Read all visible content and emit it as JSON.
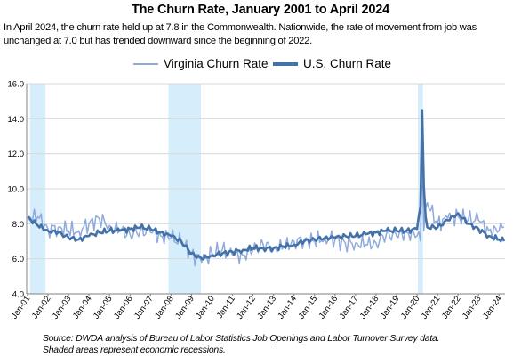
{
  "header": {
    "title": "The Churn Rate, January 2001 to April 2024",
    "subtitle": "In April 2024, the churn rate held up at 7.8  in the Commonwealth. Nationwide, the rate of movement from job was unchanged at 7.0 but has trended downward since the beginning of 2022."
  },
  "legend": {
    "items": [
      {
        "label": "Virginia Churn Rate",
        "color": "#8FAADC"
      },
      {
        "label": "U.S. Churn Rate",
        "color": "#4472A8"
      }
    ]
  },
  "footer": {
    "source_line1": "Source: DWDA analysis of Bureau of Labor Statistics Job Openings and Labor Turnover Survey data.",
    "source_line2": "Shaded areas represent economic recessions."
  },
  "chart_data": {
    "type": "line",
    "title": "The Churn Rate, January 2001 to April 2024",
    "ylim": [
      4.0,
      16.0
    ],
    "yticks": [
      "4.0",
      "6.0",
      "8.0",
      "10.0",
      "12.0",
      "14.0",
      "16.0"
    ],
    "xticks": [
      "Jan-01",
      "Jan-02",
      "Jan-03",
      "Jan-04",
      "Jan-05",
      "Jan-06",
      "Jan-07",
      "Jan-08",
      "Jan-09",
      "Jan-10",
      "Jan-11",
      "Jan-12",
      "Jan-13",
      "Jan-14",
      "Jan-15",
      "Jan-16",
      "Jan-17",
      "Jan-18",
      "Jan-19",
      "Jan-20",
      "Jan-21",
      "Jan-22",
      "Jan-23",
      "Jan-24"
    ],
    "x_start": "Jan-01",
    "x_end": "Apr-24",
    "grid": "horizontal",
    "legend_position": "top",
    "recessions": [
      {
        "start": "Mar-01",
        "end": "Nov-01"
      },
      {
        "start": "Dec-07",
        "end": "Jun-09"
      },
      {
        "start": "Feb-20",
        "end": "Apr-20"
      }
    ],
    "recession_color": "#D6EEFB",
    "series": [
      {
        "name": "Virginia Churn Rate",
        "color": "#8FAADC",
        "anchors": [
          [
            "Jan-01",
            8.3
          ],
          [
            "Jul-01",
            8.4
          ],
          [
            "Jan-02",
            7.7
          ],
          [
            "Jul-02",
            7.8
          ],
          [
            "Jan-03",
            7.6
          ],
          [
            "Jul-03",
            7.6
          ],
          [
            "Jan-04",
            8.0
          ],
          [
            "Jul-04",
            8.3
          ],
          [
            "Jan-05",
            7.9
          ],
          [
            "Jul-05",
            7.6
          ],
          [
            "Jan-06",
            7.4
          ],
          [
            "Jul-06",
            7.6
          ],
          [
            "Jan-07",
            7.5
          ],
          [
            "Jul-07",
            7.3
          ],
          [
            "Jan-08",
            7.2
          ],
          [
            "Jul-08",
            6.9
          ],
          [
            "Jan-09",
            6.3
          ],
          [
            "Jul-09",
            5.8
          ],
          [
            "Jan-10",
            6.3
          ],
          [
            "Jul-10",
            6.5
          ],
          [
            "Jan-11",
            6.2
          ],
          [
            "Jul-11",
            6.2
          ],
          [
            "Jan-12",
            6.5
          ],
          [
            "Jul-12",
            6.8
          ],
          [
            "Jan-13",
            6.6
          ],
          [
            "Jul-13",
            6.7
          ],
          [
            "Jan-14",
            7.0
          ],
          [
            "Jul-14",
            7.1
          ],
          [
            "Jan-15",
            7.0
          ],
          [
            "Jul-15",
            7.2
          ],
          [
            "Jan-16",
            7.1
          ],
          [
            "Jul-16",
            6.9
          ],
          [
            "Jan-17",
            6.9
          ],
          [
            "Jul-17",
            6.8
          ],
          [
            "Jan-18",
            6.9
          ],
          [
            "Jul-18",
            7.4
          ],
          [
            "Jan-19",
            7.3
          ],
          [
            "Jul-19",
            7.5
          ],
          [
            "Jan-20",
            7.3
          ],
          [
            "Mar-20",
            7.0
          ],
          [
            "Apr-20",
            11.6
          ],
          [
            "May-20",
            7.6
          ],
          [
            "Jul-20",
            9.2
          ],
          [
            "Jan-21",
            8.0
          ],
          [
            "Jul-21",
            8.3
          ],
          [
            "Jan-22",
            8.4
          ],
          [
            "Jul-22",
            8.2
          ],
          [
            "Jan-23",
            8.2
          ],
          [
            "Jul-23",
            7.6
          ],
          [
            "Jan-24",
            7.6
          ],
          [
            "Apr-24",
            7.8
          ]
        ]
      },
      {
        "name": "U.S. Churn Rate",
        "color": "#4472A8",
        "anchors": [
          [
            "Jan-01",
            8.4
          ],
          [
            "Jul-01",
            7.9
          ],
          [
            "Jan-02",
            7.6
          ],
          [
            "Jul-02",
            7.5
          ],
          [
            "Jan-03",
            7.2
          ],
          [
            "Jul-03",
            7.1
          ],
          [
            "Jan-04",
            7.3
          ],
          [
            "Jul-04",
            7.5
          ],
          [
            "Jan-05",
            7.6
          ],
          [
            "Jul-05",
            7.6
          ],
          [
            "Jan-06",
            7.7
          ],
          [
            "Jul-06",
            7.8
          ],
          [
            "Jan-07",
            7.7
          ],
          [
            "Jul-07",
            7.5
          ],
          [
            "Jan-08",
            7.3
          ],
          [
            "Jul-08",
            7.0
          ],
          [
            "Jan-09",
            6.3
          ],
          [
            "Jul-09",
            6.0
          ],
          [
            "Jan-10",
            6.2
          ],
          [
            "Jul-10",
            6.3
          ],
          [
            "Jan-11",
            6.4
          ],
          [
            "Jul-11",
            6.5
          ],
          [
            "Jan-12",
            6.6
          ],
          [
            "Jul-12",
            6.6
          ],
          [
            "Jan-13",
            6.6
          ],
          [
            "Jul-13",
            6.7
          ],
          [
            "Jan-14",
            6.8
          ],
          [
            "Jul-14",
            7.0
          ],
          [
            "Jan-15",
            7.1
          ],
          [
            "Jul-15",
            7.2
          ],
          [
            "Jan-16",
            7.2
          ],
          [
            "Jul-16",
            7.3
          ],
          [
            "Jan-17",
            7.3
          ],
          [
            "Jul-17",
            7.4
          ],
          [
            "Jan-18",
            7.5
          ],
          [
            "Jul-18",
            7.6
          ],
          [
            "Jan-19",
            7.6
          ],
          [
            "Jul-19",
            7.6
          ],
          [
            "Jan-20",
            7.7
          ],
          [
            "Mar-20",
            9.0
          ],
          [
            "Apr-20",
            14.5
          ],
          [
            "May-20",
            10.1
          ],
          [
            "Jun-20",
            8.4
          ],
          [
            "Jul-20",
            7.8
          ],
          [
            "Jan-21",
            7.8
          ],
          [
            "Jul-21",
            8.2
          ],
          [
            "Jan-22",
            8.6
          ],
          [
            "Jul-22",
            8.0
          ],
          [
            "Jan-23",
            7.7
          ],
          [
            "Jul-23",
            7.3
          ],
          [
            "Jan-24",
            7.1
          ],
          [
            "Apr-24",
            7.0
          ]
        ]
      }
    ]
  }
}
